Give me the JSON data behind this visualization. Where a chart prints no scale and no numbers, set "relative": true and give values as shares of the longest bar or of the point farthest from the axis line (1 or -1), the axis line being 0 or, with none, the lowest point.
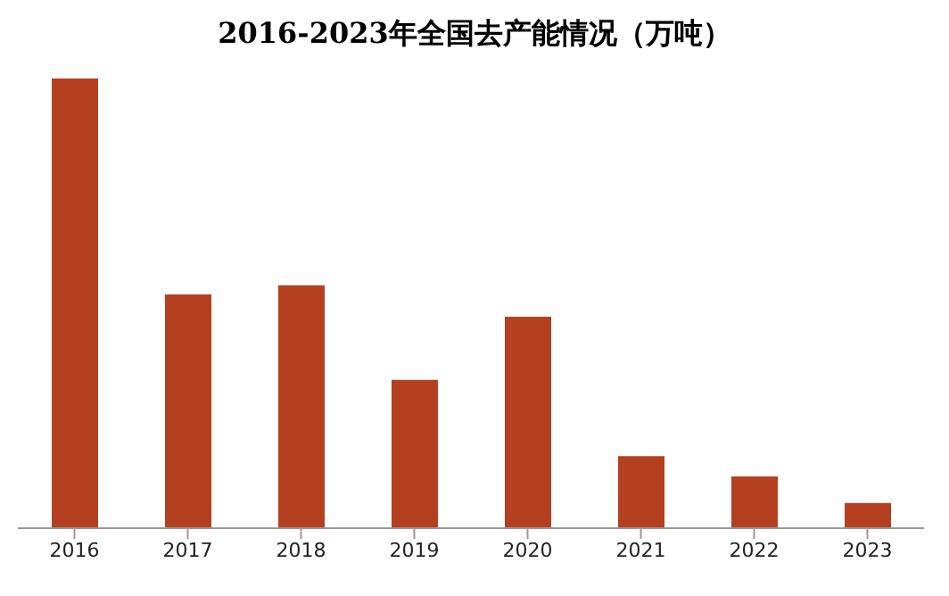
{
  "chart_data": {
    "type": "bar",
    "title": "2016-2023年全国去产能情况（万吨）",
    "categories": [
      "2016",
      "2017",
      "2018",
      "2019",
      "2020",
      "2021",
      "2022",
      "2023"
    ],
    "values": [
      1,
      0.52,
      0.54,
      0.33,
      0.47,
      0.16,
      0.115,
      0.056
    ],
    "color": "#b5401f",
    "relative": true,
    "grid": false,
    "legend": false
  }
}
